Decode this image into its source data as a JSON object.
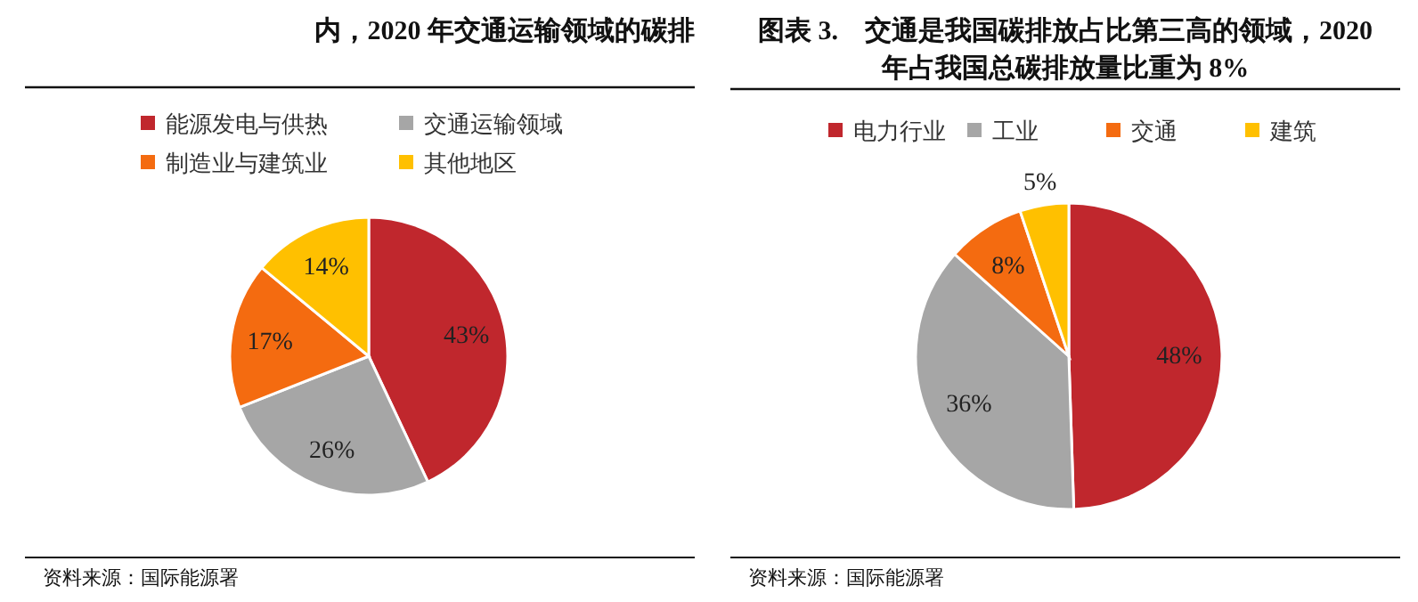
{
  "chart_data": [
    {
      "type": "pie",
      "title": "内，2020 年交通运输领域的碳排",
      "categories": [
        "能源发电与供热",
        "交通运输领域",
        "制造业与建筑业",
        "其他地区"
      ],
      "values": [
        43,
        26,
        17,
        14
      ],
      "value_labels": [
        "43%",
        "26%",
        "17%",
        "14%"
      ],
      "colors": [
        "#c0272d",
        "#a6a6a6",
        "#f46b10",
        "#ffc000"
      ],
      "legend": "top",
      "annotations": [
        "资料来源：国际能源署"
      ]
    },
    {
      "type": "pie",
      "title": "图表 3.　交通是我国碳排放占比第三高的领域，2020 年占我国总碳排放量比重为 8%",
      "categories": [
        "电力行业",
        "工业",
        "交通",
        "建筑"
      ],
      "values": [
        48,
        36,
        8,
        5
      ],
      "value_labels": [
        "48%",
        "36%",
        "8%",
        "5%"
      ],
      "colors": [
        "#c0272d",
        "#a6a6a6",
        "#f46b10",
        "#ffc000"
      ],
      "legend": "top",
      "annotations": [
        "资料来源：国际能源署"
      ]
    }
  ]
}
